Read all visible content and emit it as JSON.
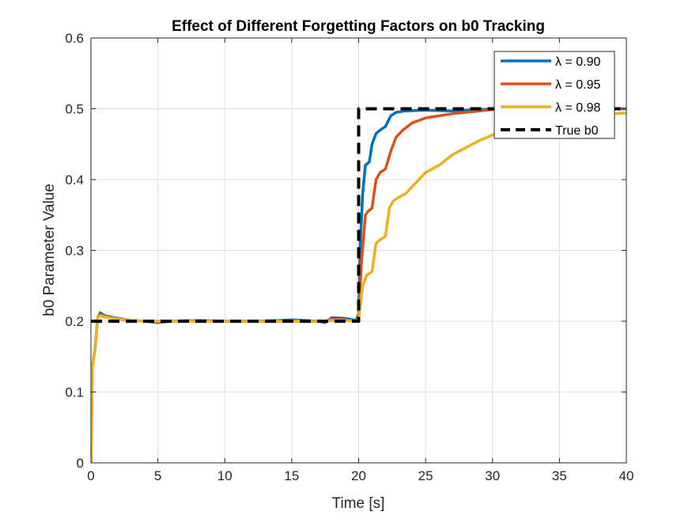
{
  "chart_data": {
    "type": "line",
    "title": "Effect of Different Forgetting Factors on b0 Tracking",
    "xlabel": "Time [s]",
    "ylabel": "b0 Parameter Value",
    "xlim": [
      0,
      40
    ],
    "ylim": [
      0,
      0.6
    ],
    "xticks": [
      0,
      5,
      10,
      15,
      20,
      25,
      30,
      35,
      40
    ],
    "xtick_labels": [
      "0",
      "5",
      "10",
      "15",
      "20",
      "25",
      "30",
      "35",
      "40"
    ],
    "yticks": [
      0,
      0.1,
      0.2,
      0.3,
      0.4,
      0.5,
      0.6
    ],
    "ytick_labels": [
      "0",
      "0.1",
      "0.2",
      "0.3",
      "0.4",
      "0.5",
      "0.6"
    ],
    "grid": true,
    "legend_position": "top-right",
    "series": [
      {
        "name": "λ = 0.90",
        "color": "#0072BD",
        "style": "solid",
        "x": [
          0,
          0.1,
          0.3,
          0.5,
          0.7,
          1,
          2,
          3,
          4,
          5,
          6,
          8,
          10,
          12,
          14,
          15,
          16,
          17,
          17.5,
          18,
          19,
          19.8,
          20,
          20.1,
          20.3,
          20.5,
          20.8,
          21,
          21.3,
          21.6,
          22,
          22.4,
          22.8,
          23.5,
          25,
          27,
          29,
          31,
          33,
          35,
          37,
          39,
          40
        ],
        "y": [
          0,
          0.135,
          0.16,
          0.205,
          0.212,
          0.208,
          0.204,
          0.201,
          0.2,
          0.198,
          0.2,
          0.201,
          0.2,
          0.2,
          0.201,
          0.202,
          0.201,
          0.2,
          0.198,
          0.205,
          0.204,
          0.201,
          0.21,
          0.3,
          0.38,
          0.42,
          0.425,
          0.45,
          0.465,
          0.47,
          0.475,
          0.49,
          0.495,
          0.497,
          0.498,
          0.497,
          0.499,
          0.5,
          0.501,
          0.5,
          0.502,
          0.5,
          0.5
        ]
      },
      {
        "name": "λ = 0.95",
        "color": "#D95319",
        "style": "solid",
        "x": [
          0,
          0.1,
          0.3,
          0.5,
          0.7,
          1,
          2,
          3,
          4,
          5,
          6,
          8,
          10,
          12,
          14,
          15,
          16,
          17,
          17.5,
          18,
          19,
          19.8,
          20,
          20.2,
          20.5,
          20.7,
          21,
          21.3,
          21.6,
          22,
          22.4,
          22.8,
          23.3,
          24,
          25,
          26,
          27,
          28,
          29,
          30,
          32,
          34,
          36,
          38,
          40
        ],
        "y": [
          0,
          0.135,
          0.16,
          0.205,
          0.21,
          0.207,
          0.203,
          0.201,
          0.2,
          0.199,
          0.2,
          0.201,
          0.2,
          0.2,
          0.2,
          0.201,
          0.2,
          0.2,
          0.199,
          0.203,
          0.202,
          0.2,
          0.205,
          0.28,
          0.35,
          0.355,
          0.36,
          0.4,
          0.41,
          0.415,
          0.44,
          0.46,
          0.47,
          0.48,
          0.487,
          0.49,
          0.493,
          0.495,
          0.497,
          0.499,
          0.5,
          0.5,
          0.501,
          0.5,
          0.5
        ]
      },
      {
        "name": "λ = 0.98",
        "color": "#EDB120",
        "style": "solid",
        "x": [
          0,
          0.1,
          0.3,
          0.5,
          0.7,
          1,
          2,
          3,
          4,
          5,
          6,
          8,
          10,
          12,
          14,
          15,
          16,
          17,
          18,
          19,
          19.8,
          20,
          20.3,
          20.6,
          21,
          21.3,
          21.6,
          22,
          22.3,
          22.6,
          23,
          23.5,
          24,
          24.5,
          25,
          26,
          27,
          28,
          29,
          30,
          31,
          32,
          33,
          34,
          35,
          36,
          37,
          38,
          39,
          40
        ],
        "y": [
          0,
          0.135,
          0.16,
          0.205,
          0.208,
          0.206,
          0.203,
          0.201,
          0.2,
          0.2,
          0.2,
          0.2,
          0.2,
          0.2,
          0.2,
          0.2,
          0.2,
          0.2,
          0.201,
          0.201,
          0.2,
          0.203,
          0.25,
          0.265,
          0.27,
          0.31,
          0.315,
          0.32,
          0.36,
          0.37,
          0.375,
          0.38,
          0.39,
          0.4,
          0.41,
          0.42,
          0.435,
          0.445,
          0.455,
          0.463,
          0.468,
          0.473,
          0.478,
          0.482,
          0.485,
          0.488,
          0.49,
          0.492,
          0.493,
          0.494
        ]
      },
      {
        "name": "True b0",
        "color": "#000000",
        "style": "dashed",
        "x": [
          0,
          20,
          20,
          40
        ],
        "y": [
          0.2,
          0.2,
          0.5,
          0.5
        ]
      }
    ]
  }
}
